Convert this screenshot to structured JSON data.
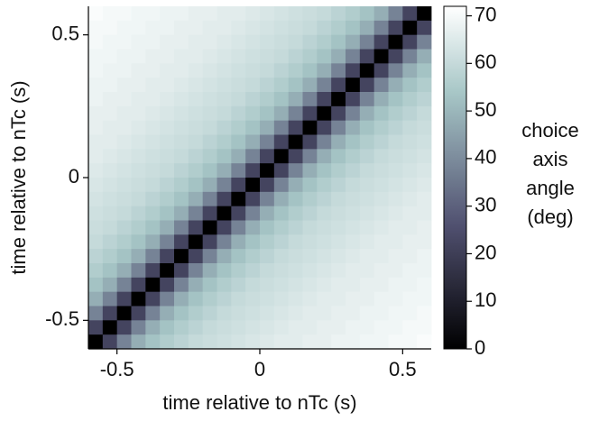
{
  "chart_data": {
    "type": "heatmap",
    "xlabel": "time relative to nTc (s)",
    "ylabel": "time relative to nTc (s)",
    "xlim": [
      -0.6,
      0.6
    ],
    "ylim": [
      -0.6,
      0.6
    ],
    "xticks": [
      -0.5,
      0,
      0.5
    ],
    "yticks": [
      -0.5,
      0,
      0.5
    ],
    "colormap": "bone",
    "clim": [
      0,
      72
    ],
    "cticks": [
      0,
      10,
      20,
      30,
      40,
      50,
      60,
      70
    ],
    "colorbar_label": [
      "choice",
      "axis",
      "angle",
      "(deg)"
    ],
    "values": [
      [
        71,
        70,
        70,
        69,
        69,
        68,
        68,
        67,
        67,
        66,
        66,
        65,
        64,
        63,
        62,
        61,
        60,
        58,
        56,
        53,
        48,
        38,
        22,
        0
      ],
      [
        70,
        70,
        69,
        69,
        68,
        68,
        67,
        67,
        66,
        66,
        65,
        64,
        63,
        62,
        61,
        60,
        58,
        56,
        53,
        48,
        38,
        22,
        0,
        22
      ],
      [
        70,
        69,
        69,
        68,
        68,
        67,
        67,
        66,
        66,
        65,
        64,
        63,
        62,
        61,
        60,
        58,
        56,
        53,
        48,
        38,
        22,
        0,
        22,
        38
      ],
      [
        69,
        69,
        68,
        68,
        67,
        67,
        66,
        66,
        65,
        64,
        63,
        62,
        61,
        60,
        58,
        56,
        53,
        48,
        38,
        22,
        0,
        22,
        38,
        48
      ],
      [
        69,
        68,
        68,
        67,
        67,
        66,
        66,
        65,
        64,
        63,
        62,
        61,
        60,
        58,
        56,
        53,
        48,
        38,
        22,
        0,
        22,
        38,
        48,
        53
      ],
      [
        68,
        68,
        67,
        67,
        66,
        66,
        65,
        64,
        63,
        62,
        61,
        60,
        58,
        56,
        53,
        48,
        38,
        22,
        0,
        22,
        38,
        48,
        53,
        56
      ],
      [
        68,
        67,
        67,
        66,
        66,
        65,
        64,
        63,
        62,
        61,
        60,
        58,
        56,
        53,
        48,
        38,
        22,
        0,
        22,
        38,
        48,
        53,
        56,
        58
      ],
      [
        67,
        67,
        66,
        66,
        65,
        64,
        63,
        62,
        61,
        60,
        58,
        56,
        53,
        48,
        38,
        22,
        0,
        22,
        38,
        48,
        53,
        56,
        58,
        60
      ],
      [
        67,
        66,
        66,
        65,
        64,
        63,
        62,
        61,
        60,
        58,
        56,
        53,
        48,
        38,
        22,
        0,
        22,
        38,
        48,
        53,
        56,
        58,
        60,
        61
      ],
      [
        66,
        66,
        65,
        64,
        63,
        62,
        61,
        60,
        58,
        56,
        53,
        48,
        38,
        22,
        0,
        22,
        38,
        48,
        53,
        56,
        58,
        60,
        61,
        62
      ],
      [
        66,
        65,
        64,
        63,
        62,
        61,
        60,
        58,
        56,
        53,
        48,
        38,
        22,
        0,
        22,
        38,
        48,
        53,
        56,
        58,
        60,
        61,
        62,
        63
      ],
      [
        65,
        64,
        63,
        62,
        61,
        60,
        58,
        56,
        53,
        48,
        38,
        22,
        0,
        22,
        38,
        48,
        53,
        56,
        58,
        60,
        61,
        62,
        63,
        64
      ],
      [
        64,
        63,
        62,
        61,
        60,
        58,
        56,
        53,
        48,
        38,
        22,
        0,
        22,
        38,
        48,
        53,
        56,
        58,
        60,
        61,
        62,
        63,
        64,
        65
      ],
      [
        63,
        62,
        61,
        60,
        58,
        56,
        53,
        48,
        38,
        22,
        0,
        22,
        38,
        48,
        53,
        56,
        58,
        60,
        61,
        62,
        63,
        64,
        65,
        66
      ],
      [
        62,
        61,
        60,
        58,
        56,
        53,
        48,
        38,
        22,
        0,
        22,
        38,
        48,
        53,
        56,
        58,
        60,
        61,
        62,
        63,
        64,
        65,
        66,
        66
      ],
      [
        61,
        60,
        58,
        56,
        53,
        48,
        38,
        22,
        0,
        22,
        38,
        48,
        53,
        56,
        58,
        60,
        61,
        62,
        63,
        64,
        65,
        66,
        66,
        67
      ],
      [
        60,
        58,
        56,
        53,
        48,
        38,
        22,
        0,
        22,
        38,
        48,
        53,
        56,
        58,
        60,
        61,
        62,
        63,
        64,
        65,
        66,
        66,
        67,
        67
      ],
      [
        58,
        56,
        53,
        48,
        38,
        22,
        0,
        22,
        38,
        48,
        53,
        56,
        58,
        60,
        61,
        62,
        63,
        64,
        65,
        66,
        66,
        67,
        67,
        68
      ],
      [
        56,
        53,
        48,
        38,
        22,
        0,
        22,
        38,
        48,
        53,
        56,
        58,
        60,
        61,
        62,
        63,
        64,
        65,
        66,
        66,
        67,
        67,
        68,
        68
      ],
      [
        53,
        48,
        38,
        22,
        0,
        22,
        38,
        48,
        53,
        56,
        58,
        60,
        61,
        62,
        63,
        64,
        65,
        66,
        66,
        67,
        67,
        68,
        68,
        69
      ],
      [
        48,
        38,
        22,
        0,
        22,
        38,
        48,
        53,
        56,
        58,
        60,
        61,
        62,
        63,
        64,
        65,
        66,
        66,
        67,
        67,
        68,
        68,
        69,
        69
      ],
      [
        38,
        22,
        0,
        22,
        38,
        48,
        53,
        56,
        58,
        60,
        61,
        62,
        63,
        64,
        65,
        66,
        66,
        67,
        67,
        68,
        68,
        69,
        69,
        70
      ],
      [
        22,
        0,
        22,
        38,
        48,
        53,
        56,
        58,
        60,
        61,
        62,
        63,
        64,
        65,
        66,
        66,
        67,
        67,
        68,
        68,
        69,
        69,
        70,
        70
      ],
      [
        0,
        22,
        38,
        48,
        53,
        56,
        58,
        60,
        61,
        62,
        63,
        64,
        65,
        66,
        66,
        67,
        67,
        68,
        68,
        69,
        69,
        70,
        70,
        71
      ]
    ]
  }
}
